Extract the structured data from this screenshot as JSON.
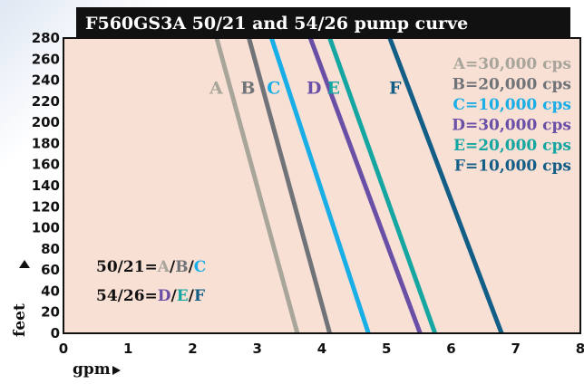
{
  "colors": {
    "plot_background": "#f9e0d5",
    "frame": "#111111",
    "title_bar": "#111111",
    "title_text": "#ffffff",
    "text": "#111111"
  },
  "chart_data": {
    "type": "line",
    "title": "F560GS3A 50/21 and 54/26 pump curve",
    "xlabel": "gpm",
    "ylabel": "feet",
    "xlim": [
      0,
      8
    ],
    "ylim": [
      0,
      280
    ],
    "x_ticks": [
      "0",
      "1",
      "2",
      "3",
      "4",
      "5",
      "6",
      "7",
      "8"
    ],
    "y_ticks": [
      "0",
      "20",
      "40",
      "60",
      "80",
      "100",
      "120",
      "140",
      "160",
      "180",
      "200",
      "220",
      "240",
      "260",
      "280"
    ],
    "grid": false,
    "legend_position": "top-right",
    "series": [
      {
        "name": "A=30,000 cps",
        "letter": "A",
        "color": "#a8a59b",
        "x": [
          2.37,
          3.62
        ],
        "y": [
          280,
          0
        ]
      },
      {
        "name": "B=20,000 cps",
        "letter": "B",
        "color": "#707478",
        "x": [
          2.87,
          4.12
        ],
        "y": [
          280,
          0
        ]
      },
      {
        "name": "C=10,000 cps",
        "letter": "C",
        "color": "#19aee6",
        "x": [
          3.22,
          4.72
        ],
        "y": [
          280,
          0
        ]
      },
      {
        "name": "D=30,000 cps",
        "letter": "D",
        "color": "#6a4fa6",
        "x": [
          3.82,
          5.52
        ],
        "y": [
          280,
          0
        ]
      },
      {
        "name": "E=20,000 cps",
        "letter": "E",
        "color": "#15a6a2",
        "x": [
          4.12,
          5.75
        ],
        "y": [
          280,
          0
        ]
      },
      {
        "name": "F=10,000 cps",
        "letter": "F",
        "color": "#135e86",
        "x": [
          5.05,
          6.78
        ],
        "y": [
          280,
          0
        ]
      }
    ],
    "group_notes": [
      {
        "prefix": "50/21=",
        "letters": [
          "A",
          "B",
          "C"
        ]
      },
      {
        "prefix": "54/26=",
        "letters": [
          "D",
          "E",
          "F"
        ]
      }
    ]
  }
}
